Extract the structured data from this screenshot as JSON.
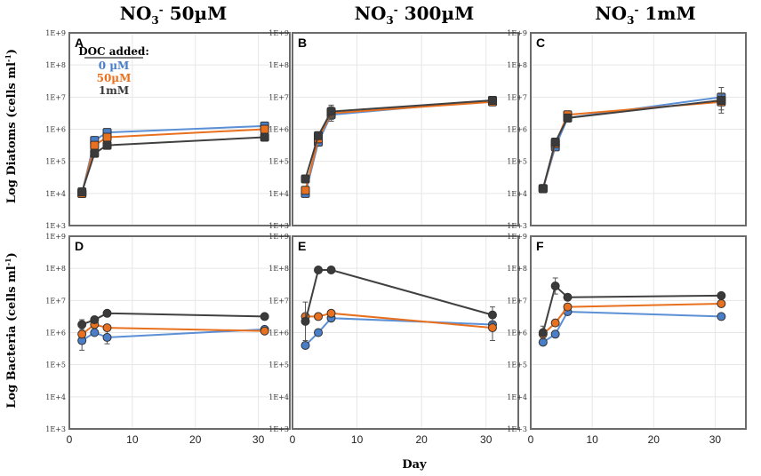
{
  "colors": {
    "0_uM": "#4a7ec9",
    "50_uM": "#e8701e",
    "1mM": "#3a3a3a",
    "line_0": "#5b8fd6",
    "line_50": "#e8701e",
    "line_1mM": "#404040"
  },
  "column_titles": [
    {
      "main": "NO",
      "sub": "3",
      "sup": "-",
      "rest": " 50µM"
    },
    {
      "main": "NO",
      "sub": "3",
      "sup": "-",
      "rest": " 300µM"
    },
    {
      "main": "NO",
      "sub": "3",
      "sup": "-",
      "rest": " 1mM"
    }
  ],
  "row_titles": [
    {
      "text": "Log Diatoms (cells ml",
      "sup": "-1",
      "close": ")"
    },
    {
      "text": "Log Bacteria (cells ml",
      "sup": "-1",
      "close": ")"
    }
  ],
  "x_title": "Day",
  "legend": {
    "title": "DOC added:",
    "entries": [
      {
        "label": "0 µM",
        "series": "0_uM"
      },
      {
        "label": "50µM",
        "series": "50_uM"
      },
      {
        "label": "1mM",
        "series": "1mM"
      }
    ]
  },
  "chart_data": [
    {
      "type": "line",
      "panel": "A",
      "marker": "square",
      "xlim": [
        0,
        35
      ],
      "ylim_log10": [
        3,
        9
      ],
      "x_ticks": [
        0,
        10,
        20,
        30
      ],
      "y_ticks": [
        "1E+3",
        "1E+4",
        "1E+5",
        "1E+6",
        "1E+7",
        "1E+8",
        "1E+9"
      ],
      "series": [
        {
          "name": "0 µM",
          "key": "0_uM",
          "x": [
            2,
            4,
            6,
            31
          ],
          "log10_y": [
            4.0,
            5.65,
            5.9,
            6.1
          ],
          "err": [
            0.1,
            0.05,
            0.05,
            0.05
          ]
        },
        {
          "name": "50µM",
          "key": "50_uM",
          "x": [
            2,
            4,
            6,
            31
          ],
          "log10_y": [
            4.0,
            5.5,
            5.75,
            6.0
          ],
          "err": [
            0.1,
            0.1,
            0.05,
            0.05
          ]
        },
        {
          "name": "1mM",
          "key": "1mM",
          "x": [
            2,
            4,
            6,
            31
          ],
          "log10_y": [
            4.05,
            5.25,
            5.5,
            5.75
          ],
          "err": [
            0.1,
            0.1,
            0.05,
            0.05
          ]
        }
      ]
    },
    {
      "type": "line",
      "panel": "B",
      "marker": "square",
      "xlim": [
        0,
        35
      ],
      "ylim_log10": [
        3,
        9
      ],
      "x_ticks": [
        0,
        10,
        20,
        30
      ],
      "y_ticks": [
        "1E+3",
        "1E+4",
        "1E+5",
        "1E+6",
        "1E+7",
        "1E+8",
        "1E+9"
      ],
      "series": [
        {
          "name": "0 µM",
          "key": "0_uM",
          "x": [
            2,
            4,
            6,
            31
          ],
          "log10_y": [
            4.0,
            5.6,
            6.45,
            6.9
          ],
          "err": [
            0.05,
            0.1,
            0.2,
            0.1
          ]
        },
        {
          "name": "50µM",
          "key": "50_uM",
          "x": [
            2,
            4,
            6,
            31
          ],
          "log10_y": [
            4.1,
            5.7,
            6.5,
            6.85
          ],
          "err": [
            0.05,
            0.1,
            0.2,
            0.1
          ]
        },
        {
          "name": "1mM",
          "key": "1mM",
          "x": [
            2,
            4,
            6,
            31
          ],
          "log10_y": [
            4.45,
            5.8,
            6.55,
            6.9
          ],
          "err": [
            0.05,
            0.1,
            0.2,
            0.1
          ]
        }
      ]
    },
    {
      "type": "line",
      "panel": "C",
      "marker": "square",
      "xlim": [
        0,
        35
      ],
      "ylim_log10": [
        3,
        9
      ],
      "x_ticks": [
        0,
        10,
        20,
        30
      ],
      "y_ticks": [
        "1E+3",
        "1E+4",
        "1E+5",
        "1E+6",
        "1E+7",
        "1E+8",
        "1E+9"
      ],
      "series": [
        {
          "name": "0 µM",
          "key": "0_uM",
          "x": [
            2,
            4,
            6,
            31
          ],
          "log10_y": [
            4.15,
            5.45,
            6.35,
            7.0
          ],
          "err": [
            0.1,
            0.1,
            0.05,
            0.1
          ]
        },
        {
          "name": "50µM",
          "key": "50_uM",
          "x": [
            2,
            4,
            6,
            31
          ],
          "log10_y": [
            4.15,
            5.55,
            6.45,
            6.85
          ],
          "err": [
            0.1,
            0.1,
            0.05,
            0.25
          ]
        },
        {
          "name": "1mM",
          "key": "1mM",
          "x": [
            2,
            4,
            6,
            31
          ],
          "log10_y": [
            4.15,
            5.6,
            6.35,
            6.9
          ],
          "err": [
            0.1,
            0.1,
            0.05,
            0.4
          ]
        }
      ]
    },
    {
      "type": "line",
      "panel": "D",
      "marker": "circle",
      "xlim": [
        0,
        35
      ],
      "ylim_log10": [
        3,
        9
      ],
      "x_ticks": [
        0,
        10,
        20,
        30
      ],
      "y_ticks": [
        "1E+3",
        "1E+4",
        "1E+5",
        "1E+6",
        "1E+7",
        "1E+8",
        "1E+9"
      ],
      "series": [
        {
          "name": "0 µM",
          "key": "0_uM",
          "x": [
            2,
            4,
            6,
            31
          ],
          "log10_y": [
            5.75,
            6.0,
            5.85,
            6.1
          ],
          "err": [
            0.3,
            0.05,
            0.2,
            0.05
          ]
        },
        {
          "name": "50µM",
          "key": "50_uM",
          "x": [
            2,
            4,
            6,
            31
          ],
          "log10_y": [
            5.95,
            6.25,
            6.15,
            6.05
          ],
          "err": [
            0.1,
            0.1,
            0.05,
            0.05
          ]
        },
        {
          "name": "1mM",
          "key": "1mM",
          "x": [
            2,
            4,
            6,
            31
          ],
          "log10_y": [
            6.25,
            6.4,
            6.6,
            6.5
          ],
          "err": [
            0.15,
            0.1,
            0.05,
            0.05
          ]
        }
      ]
    },
    {
      "type": "line",
      "panel": "E",
      "marker": "circle",
      "xlim": [
        0,
        35
      ],
      "ylim_log10": [
        3,
        9
      ],
      "x_ticks": [
        0,
        10,
        20,
        30
      ],
      "y_ticks": [
        "1E+3",
        "1E+4",
        "1E+5",
        "1E+6",
        "1E+7",
        "1E+8",
        "1E+9"
      ],
      "series": [
        {
          "name": "0 µM",
          "key": "0_uM",
          "x": [
            2,
            4,
            6,
            31
          ],
          "log10_y": [
            5.6,
            6.0,
            6.45,
            6.25
          ],
          "err": [
            0.05,
            0.05,
            0.05,
            0.05
          ]
        },
        {
          "name": "50µM",
          "key": "50_uM",
          "x": [
            2,
            4,
            6,
            31
          ],
          "log10_y": [
            6.5,
            6.5,
            6.6,
            6.15
          ],
          "err": [
            0.1,
            0.1,
            0.1,
            0.4
          ]
        },
        {
          "name": "1mM",
          "key": "1mM",
          "x": [
            2,
            4,
            6,
            31
          ],
          "log10_y": [
            6.35,
            7.95,
            7.95,
            6.55
          ],
          "err": [
            0.6,
            0.05,
            0.05,
            0.25
          ]
        }
      ]
    },
    {
      "type": "line",
      "panel": "F",
      "marker": "circle",
      "xlim": [
        0,
        35
      ],
      "ylim_log10": [
        3,
        9
      ],
      "x_ticks": [
        0,
        10,
        20,
        30
      ],
      "y_ticks": [
        "1E+3",
        "1E+4",
        "1E+5",
        "1E+6",
        "1E+7",
        "1E+8",
        "1E+9"
      ],
      "series": [
        {
          "name": "0 µM",
          "key": "0_uM",
          "x": [
            2,
            4,
            6,
            31
          ],
          "log10_y": [
            5.7,
            5.95,
            6.65,
            6.5
          ],
          "err": [
            0.1,
            0.05,
            0.05,
            0.05
          ]
        },
        {
          "name": "50µM",
          "key": "50_uM",
          "x": [
            2,
            4,
            6,
            31
          ],
          "log10_y": [
            5.95,
            6.3,
            6.8,
            6.9
          ],
          "err": [
            0.1,
            0.05,
            0.05,
            0.05
          ]
        },
        {
          "name": "1mM",
          "key": "1mM",
          "x": [
            2,
            4,
            6,
            31
          ],
          "log10_y": [
            6.0,
            7.45,
            7.1,
            7.15
          ],
          "err": [
            0.2,
            0.25,
            0.05,
            0.05
          ]
        }
      ]
    }
  ]
}
